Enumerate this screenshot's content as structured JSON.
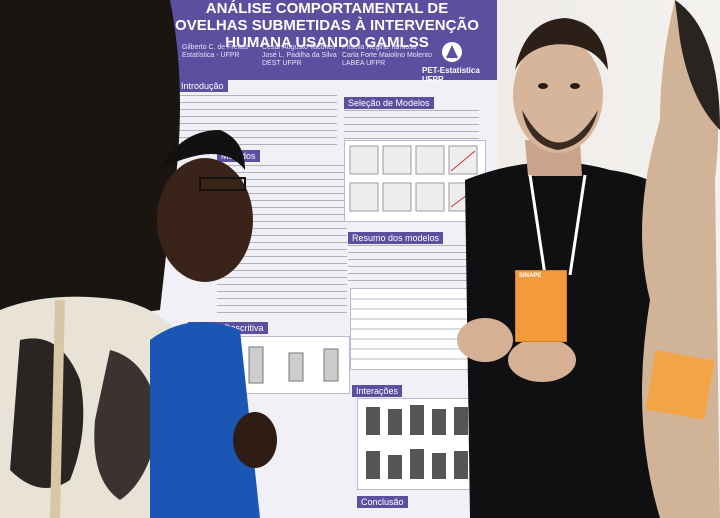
{
  "poster": {
    "title": "ANÁLISE COMPORTAMENTAL DE OVELHAS SUBMETIDAS À INTERVENÇÃO HUMANA USANDO GAMLSS",
    "authors_left": "Gilberto C. de Freitas\nEstatística - UFPR",
    "authors_mid": "Cesar Augusto Taconeli\nJosé L. Padilha da Silva\nDEST UFPR",
    "authors_right": "Priscila Regina Tamioso\nCarla Forte Maiolino Molento\nLABEA UFPR",
    "logo_text": "PET-Estatística\nUFPR",
    "sections": {
      "intro": "Introdução",
      "metodos": "Métodos",
      "selecao": "Seleção de Modelos",
      "resumo": "Resumo dos modelos",
      "analise": "Análise Descritiva",
      "interacoes": "Interações",
      "conclusao": "Conclusão"
    }
  },
  "badge": {
    "text": "SINAPE"
  },
  "colors": {
    "poster_header": "#5b4fa0",
    "badge": "#f29a3c",
    "shirt": "#101012"
  }
}
